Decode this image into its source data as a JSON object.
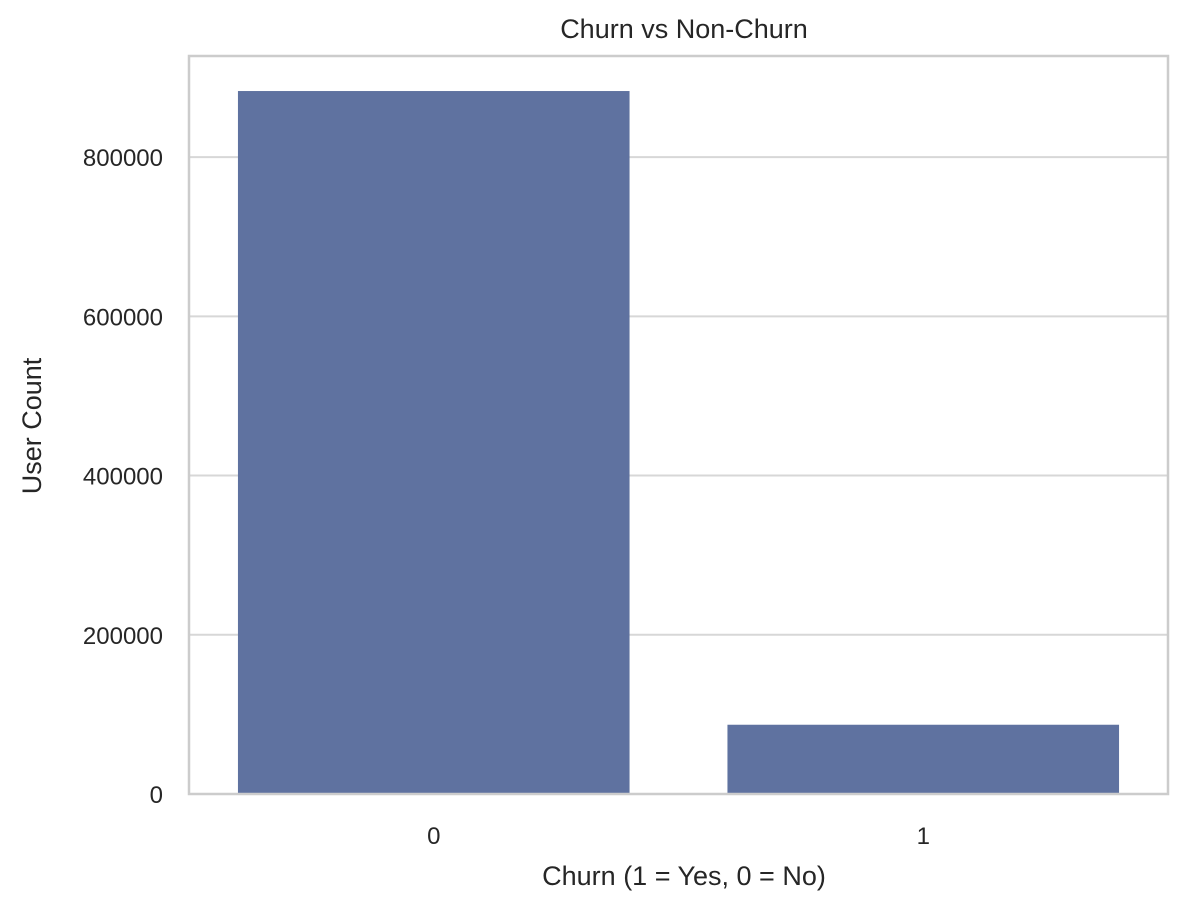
{
  "chart_data": {
    "type": "bar",
    "title": "Churn vs Non-Churn",
    "xlabel": "Churn (1 = Yes, 0 = No)",
    "ylabel": "User Count",
    "categories": [
      "0",
      "1"
    ],
    "values": [
      883000,
      87000
    ],
    "ylim": [
      0,
      927000
    ],
    "yticks": [
      0,
      200000,
      400000,
      600000,
      800000
    ],
    "ytick_labels": [
      "0",
      "200000",
      "400000",
      "600000",
      "800000"
    ],
    "bar_color": "#5f72a0",
    "grid": true,
    "grid_axis": "y",
    "legend": false
  }
}
